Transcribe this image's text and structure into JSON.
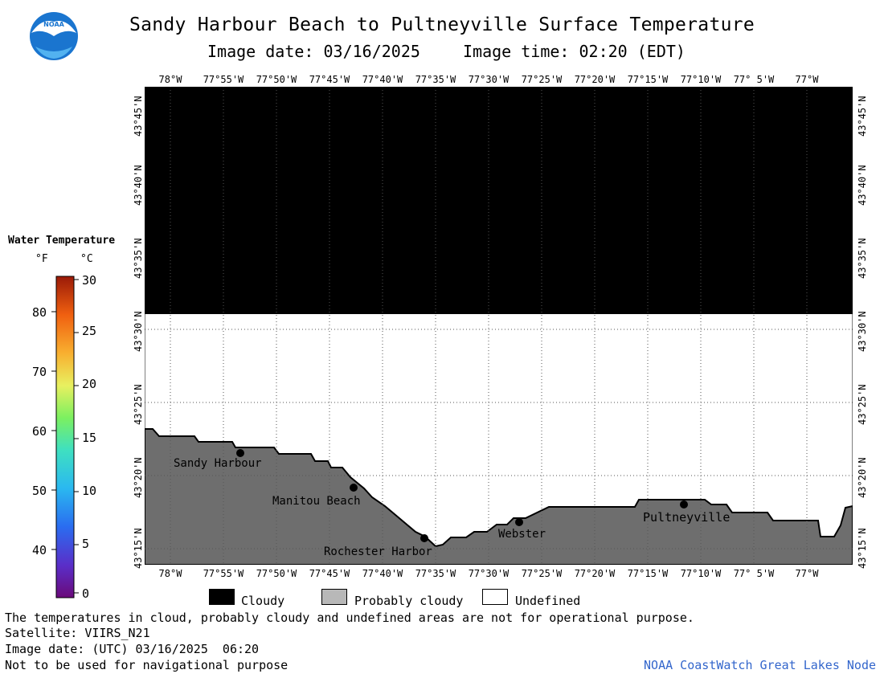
{
  "header": {
    "title": "Sandy Harbour Beach to Pultneyville Surface Temperature",
    "image_date": "Image date: 03/16/2025",
    "image_time": "Image time: 02:20 (EDT)",
    "logo_text": "NOAA"
  },
  "map": {
    "lon_labels": [
      "78°W",
      "77°55'W",
      "77°50'W",
      "77°45'W",
      "77°40'W",
      "77°35'W",
      "77°30'W",
      "77°25'W",
      "77°20'W",
      "77°15'W",
      "77°10'W",
      "77° 5'W",
      "77°W"
    ],
    "lat_labels": [
      "43°45'N",
      "43°40'N",
      "43°35'N",
      "43°30'N",
      "43°25'N",
      "43°20'N",
      "43°15'N"
    ],
    "places": [
      {
        "name": "Sandy Harbour"
      },
      {
        "name": "Manitou Beach"
      },
      {
        "name": "Rochester Harbor"
      },
      {
        "name": "Webster"
      },
      {
        "name": "Pultneyville"
      }
    ],
    "colors": {
      "cloudy": "#000000",
      "land": "#6e6e6e",
      "undefined": "#ffffff",
      "grid": "#555555"
    }
  },
  "legend": {
    "title": "Water Temperature",
    "unit_f": "°F",
    "unit_c": "°C",
    "ticks_f": [
      "80",
      "70",
      "60",
      "50",
      "40"
    ],
    "ticks_c": [
      "30",
      "25",
      "20",
      "15",
      "10",
      "5",
      "0"
    ]
  },
  "key": {
    "cloudy": "Cloudy",
    "probably_cloudy": "Probably cloudy",
    "undefined": "Undefined"
  },
  "footer": {
    "note": "The temperatures in cloud, probably cloudy and undefined areas are not for operational purpose.",
    "satellite": "Satellite: VIIRS_N21",
    "utc_date": "Image date: (UTC) 03/16/2025  06:20",
    "nav_warning": "Not to be used for navigational purpose",
    "credit": "NOAA CoastWatch Great Lakes Node"
  }
}
